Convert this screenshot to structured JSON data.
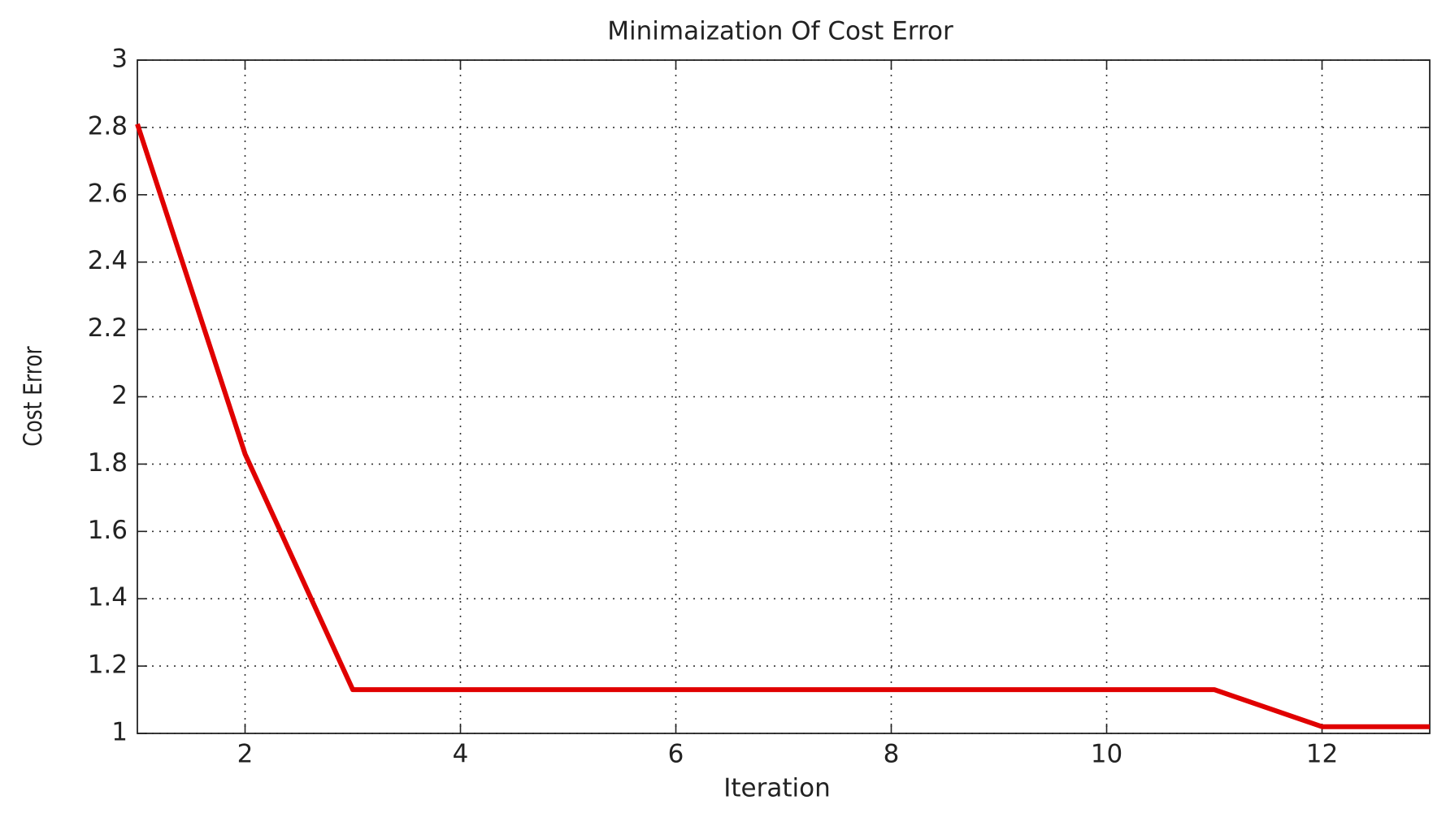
{
  "chart_data": {
    "type": "line",
    "title": "Minimaization Of Cost Error",
    "x_label": "Iteration",
    "y_label": "Cost Error",
    "x": [
      1,
      2,
      3,
      4,
      5,
      6,
      7,
      8,
      9,
      10,
      11,
      12,
      13
    ],
    "series": [
      {
        "name": "Cost Error",
        "color": "#e00000",
        "values": [
          2.81,
          1.83,
          1.13,
          1.13,
          1.13,
          1.13,
          1.13,
          1.13,
          1.13,
          1.13,
          1.13,
          1.02,
          1.02
        ]
      }
    ],
    "xlim": [
      1,
      13
    ],
    "xticks": [
      2,
      4,
      6,
      8,
      10,
      12
    ],
    "ylim": [
      1,
      3
    ],
    "yticks": [
      1,
      1.2,
      1.4,
      1.6,
      1.8,
      2,
      2.2,
      2.4,
      2.6,
      2.8,
      3
    ],
    "grid": true
  }
}
